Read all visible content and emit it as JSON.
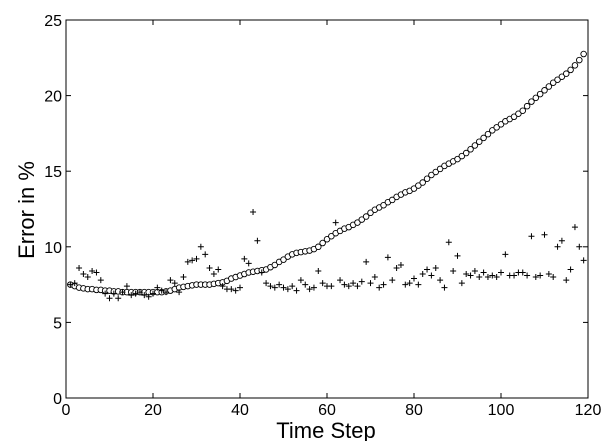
{
  "chart_data": {
    "type": "scatter",
    "title": "",
    "xlabel": "Time Step",
    "ylabel": "Error in %",
    "xlim": [
      0,
      120
    ],
    "ylim": [
      0,
      25
    ],
    "xticks": [
      0,
      20,
      40,
      60,
      80,
      100,
      120
    ],
    "yticks": [
      0,
      5,
      10,
      15,
      20,
      25
    ],
    "grid": false,
    "legend": "none",
    "series": [
      {
        "marker": "circle",
        "x": [
          1,
          2,
          3,
          4,
          5,
          6,
          7,
          8,
          9,
          10,
          11,
          12,
          13,
          14,
          15,
          16,
          17,
          18,
          19,
          20,
          21,
          22,
          23,
          24,
          25,
          26,
          27,
          28,
          29,
          30,
          31,
          32,
          33,
          34,
          35,
          36,
          37,
          38,
          39,
          40,
          41,
          42,
          43,
          44,
          45,
          46,
          47,
          48,
          49,
          50,
          51,
          52,
          53,
          54,
          55,
          56,
          57,
          58,
          59,
          60,
          61,
          62,
          63,
          64,
          65,
          66,
          67,
          68,
          69,
          70,
          71,
          72,
          73,
          74,
          75,
          76,
          77,
          78,
          79,
          80,
          81,
          82,
          83,
          84,
          85,
          86,
          87,
          88,
          89,
          90,
          91,
          92,
          93,
          94,
          95,
          96,
          97,
          98,
          99,
          100,
          101,
          102,
          103,
          104,
          105,
          106,
          107,
          108,
          109,
          110,
          111,
          112,
          113,
          114,
          115,
          116,
          117,
          118,
          119
        ],
        "y": [
          7.5,
          7.4,
          7.3,
          7.25,
          7.2,
          7.2,
          7.15,
          7.15,
          7.1,
          7.1,
          7.05,
          7.05,
          7.0,
          7.0,
          7.0,
          7.0,
          7.0,
          7.0,
          7.0,
          7.0,
          7.0,
          7.0,
          7.05,
          7.1,
          7.2,
          7.3,
          7.35,
          7.4,
          7.45,
          7.5,
          7.5,
          7.5,
          7.5,
          7.55,
          7.6,
          7.65,
          7.75,
          7.9,
          8.0,
          8.1,
          8.2,
          8.3,
          8.35,
          8.4,
          8.45,
          8.5,
          8.65,
          8.8,
          9.0,
          9.15,
          9.35,
          9.5,
          9.6,
          9.65,
          9.7,
          9.75,
          9.85,
          10.0,
          10.25,
          10.5,
          10.7,
          10.9,
          11.05,
          11.2,
          11.3,
          11.45,
          11.6,
          11.8,
          12.0,
          12.25,
          12.45,
          12.6,
          12.75,
          12.95,
          13.1,
          13.3,
          13.45,
          13.6,
          13.7,
          13.85,
          14.05,
          14.25,
          14.5,
          14.75,
          14.95,
          15.15,
          15.35,
          15.5,
          15.65,
          15.8,
          16.0,
          16.2,
          16.45,
          16.7,
          16.95,
          17.2,
          17.45,
          17.7,
          17.9,
          18.1,
          18.3,
          18.45,
          18.6,
          18.8,
          19.0,
          19.3,
          19.6,
          19.85,
          20.1,
          20.35,
          20.6,
          20.85,
          21.05,
          21.25,
          21.45,
          21.7,
          22.0,
          22.35,
          22.75
        ]
      },
      {
        "marker": "plus",
        "x": [
          1,
          2,
          3,
          4,
          5,
          6,
          7,
          8,
          9,
          10,
          11,
          12,
          13,
          14,
          15,
          16,
          17,
          18,
          19,
          20,
          21,
          22,
          23,
          24,
          25,
          26,
          27,
          28,
          29,
          30,
          31,
          32,
          33,
          34,
          35,
          36,
          37,
          38,
          39,
          40,
          41,
          42,
          43,
          44,
          45,
          46,
          47,
          48,
          49,
          50,
          51,
          52,
          53,
          54,
          55,
          56,
          57,
          58,
          59,
          60,
          61,
          62,
          63,
          64,
          65,
          66,
          67,
          68,
          69,
          70,
          71,
          72,
          73,
          74,
          75,
          76,
          77,
          78,
          79,
          80,
          81,
          82,
          83,
          84,
          85,
          86,
          87,
          88,
          89,
          90,
          91,
          92,
          93,
          94,
          95,
          96,
          97,
          98,
          99,
          100,
          101,
          102,
          103,
          104,
          105,
          106,
          107,
          108,
          109,
          110,
          111,
          112,
          113,
          114,
          115,
          116,
          117,
          118,
          119
        ],
        "y": [
          7.5,
          7.6,
          8.6,
          8.2,
          8.0,
          8.4,
          8.3,
          7.8,
          6.9,
          6.6,
          6.9,
          6.6,
          7.0,
          7.4,
          6.8,
          6.9,
          7.0,
          6.8,
          6.7,
          6.9,
          7.3,
          7.1,
          7.0,
          7.8,
          7.6,
          7.0,
          8.0,
          9.0,
          9.1,
          9.2,
          10.0,
          9.5,
          8.6,
          8.2,
          8.5,
          7.4,
          7.2,
          7.2,
          7.1,
          7.3,
          9.2,
          8.9,
          12.3,
          10.4,
          8.3,
          7.6,
          7.4,
          7.3,
          7.5,
          7.3,
          7.2,
          7.4,
          7.1,
          7.8,
          7.5,
          7.2,
          7.3,
          8.4,
          7.6,
          7.4,
          7.4,
          11.6,
          7.8,
          7.5,
          7.4,
          7.6,
          7.4,
          7.7,
          9.0,
          7.6,
          8.0,
          7.3,
          7.5,
          9.3,
          7.8,
          8.6,
          8.8,
          7.5,
          7.6,
          7.9,
          7.5,
          8.2,
          8.5,
          8.1,
          8.6,
          7.8,
          7.3,
          10.3,
          8.4,
          9.4,
          7.6,
          8.2,
          8.1,
          8.4,
          8.0,
          8.3,
          8.0,
          8.1,
          8.0,
          8.3,
          9.5,
          8.1,
          8.1,
          8.3,
          8.3,
          8.1,
          10.7,
          8.0,
          8.1,
          10.8,
          8.2,
          8.0,
          10.0,
          10.4,
          7.8,
          8.5,
          11.3,
          10.0,
          9.1
        ]
      }
    ]
  }
}
